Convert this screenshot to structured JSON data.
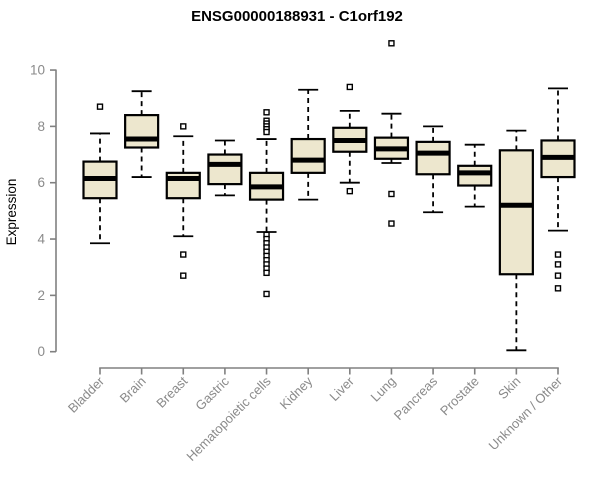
{
  "page": {
    "background": "#ffffff"
  },
  "chart_data": {
    "type": "boxplot",
    "title": "ENSG00000188931 - C1orf192",
    "ylabel": "Expression",
    "xlabel": "",
    "ylim": [
      0,
      10
    ],
    "yticks": [
      0,
      2,
      4,
      6,
      8,
      10
    ],
    "grid": false,
    "legend": "none",
    "categories": [
      "Bladder",
      "Brain",
      "Breast",
      "Gastric",
      "Hematopoietic cells",
      "Kidney",
      "Liver",
      "Lung",
      "Pancreas",
      "Prostate",
      "Skin",
      "Unknown / Other"
    ],
    "series": [
      {
        "category": "Bladder",
        "whisker_low": 3.85,
        "q1": 5.45,
        "median": 6.15,
        "q3": 6.75,
        "whisker_high": 7.75,
        "outliers": [
          8.7
        ]
      },
      {
        "category": "Brain",
        "whisker_low": 6.2,
        "q1": 7.25,
        "median": 7.55,
        "q3": 8.4,
        "whisker_high": 9.25,
        "outliers": []
      },
      {
        "category": "Breast",
        "whisker_low": 4.1,
        "q1": 5.45,
        "median": 6.15,
        "q3": 6.35,
        "whisker_high": 7.65,
        "outliers": [
          8.0,
          3.45,
          2.7
        ]
      },
      {
        "category": "Gastric",
        "whisker_low": 5.55,
        "q1": 5.95,
        "median": 6.65,
        "q3": 7.0,
        "whisker_high": 7.5,
        "outliers": []
      },
      {
        "category": "Hematopoietic cells",
        "whisker_low": 4.25,
        "q1": 5.4,
        "median": 5.85,
        "q3": 6.35,
        "whisker_high": 7.55,
        "outliers": [
          8.5,
          8.2,
          8.1,
          8.0,
          7.9,
          7.8,
          4.15,
          4.0,
          3.85,
          3.7,
          3.55,
          3.4,
          3.25,
          3.1,
          2.95,
          2.8,
          2.05
        ]
      },
      {
        "category": "Kidney",
        "whisker_low": 5.4,
        "q1": 6.35,
        "median": 6.8,
        "q3": 7.55,
        "whisker_high": 9.3,
        "outliers": []
      },
      {
        "category": "Liver",
        "whisker_low": 6.0,
        "q1": 7.1,
        "median": 7.5,
        "q3": 7.95,
        "whisker_high": 8.55,
        "outliers": [
          9.4,
          5.7
        ]
      },
      {
        "category": "Lung",
        "whisker_low": 6.7,
        "q1": 6.85,
        "median": 7.2,
        "q3": 7.6,
        "whisker_high": 8.45,
        "outliers": [
          10.95,
          5.6,
          4.55
        ]
      },
      {
        "category": "Pancreas",
        "whisker_low": 4.95,
        "q1": 6.3,
        "median": 7.05,
        "q3": 7.45,
        "whisker_high": 8.0,
        "outliers": []
      },
      {
        "category": "Prostate",
        "whisker_low": 5.15,
        "q1": 5.9,
        "median": 6.35,
        "q3": 6.6,
        "whisker_high": 7.35,
        "outliers": []
      },
      {
        "category": "Skin",
        "whisker_low": 0.05,
        "q1": 2.75,
        "median": 5.2,
        "q3": 7.15,
        "whisker_high": 7.85,
        "outliers": []
      },
      {
        "category": "Unknown / Other",
        "whisker_low": 4.3,
        "q1": 6.2,
        "median": 6.9,
        "q3": 7.5,
        "whisker_high": 9.35,
        "outliers": [
          3.45,
          3.1,
          2.7,
          2.25
        ]
      }
    ],
    "colors": {
      "box_fill": "#ede7ce",
      "box_stroke": "#000000",
      "median": "#000000",
      "whisker": "#000000",
      "outlier_stroke": "#000000",
      "outlier_fill": "#ffffff",
      "axis": "#808080",
      "tick_label": "#8a8a8a",
      "title": "#000000"
    }
  }
}
